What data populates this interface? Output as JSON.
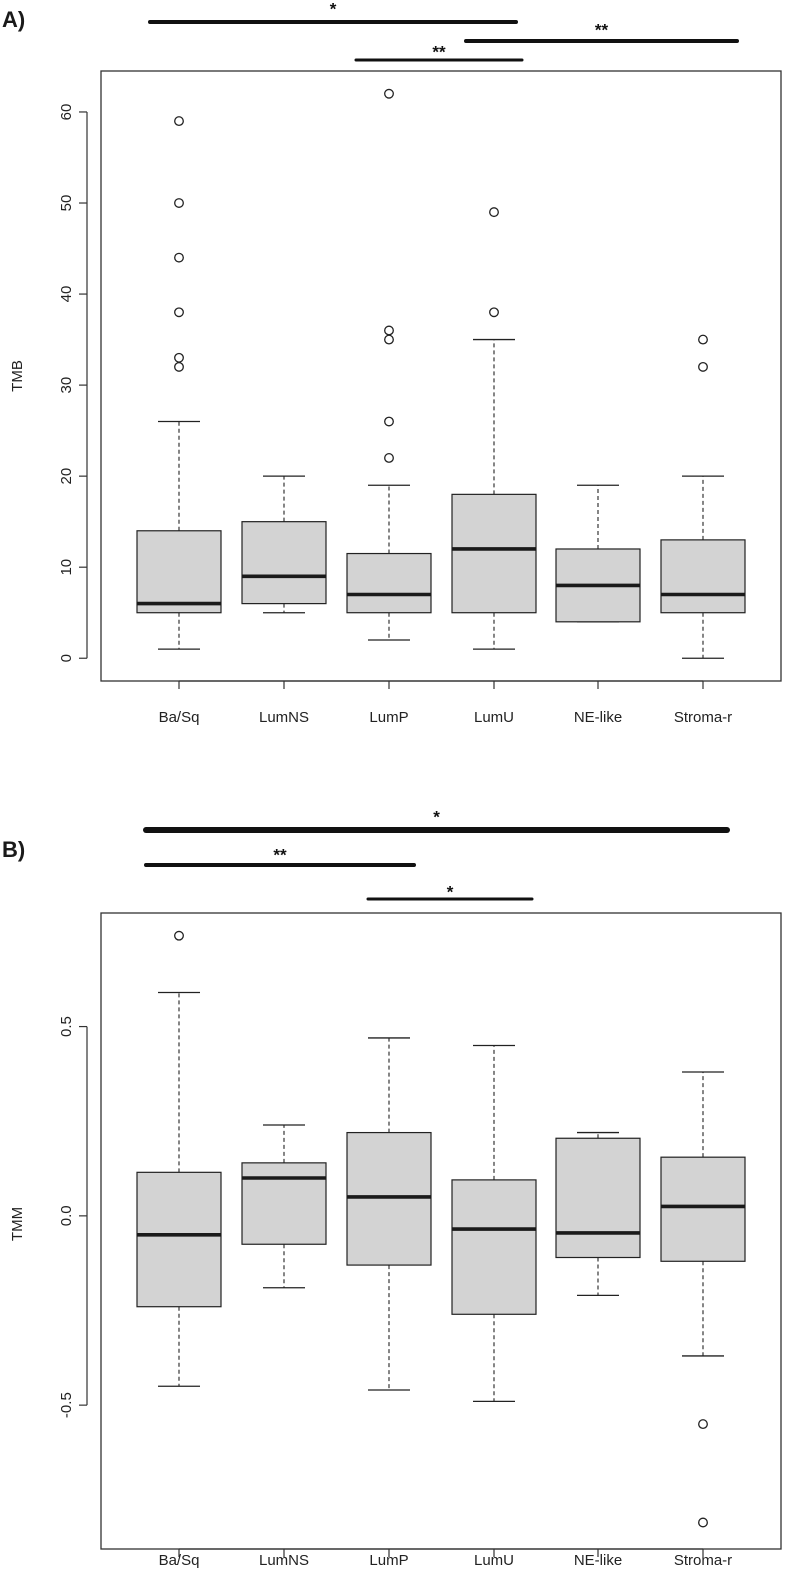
{
  "chart_data": [
    {
      "type": "box",
      "panel_label": "A)",
      "ylabel": "TMB",
      "ylim": [
        -2.5,
        64.5
      ],
      "yticks": [
        0,
        10,
        20,
        30,
        40,
        50,
        60
      ],
      "categories": [
        "Ba/Sq",
        "LumNS",
        "LumP",
        "LumU",
        "NE-like",
        "Stroma-r"
      ],
      "boxes": [
        {
          "whisker_low": 1,
          "q1": 5,
          "median": 6,
          "q3": 14,
          "whisker_high": 26,
          "outliers": [
            32,
            33,
            38,
            44,
            50,
            59
          ]
        },
        {
          "whisker_low": 5,
          "q1": 6,
          "median": 9,
          "q3": 15,
          "whisker_high": 20,
          "outliers": []
        },
        {
          "whisker_low": 2,
          "q1": 5,
          "median": 7,
          "q3": 11.5,
          "whisker_high": 19,
          "outliers": [
            22,
            26,
            35,
            36,
            62
          ]
        },
        {
          "whisker_low": 1,
          "q1": 5,
          "median": 12,
          "q3": 18,
          "whisker_high": 35,
          "outliers": [
            38,
            49
          ]
        },
        {
          "whisker_low": 4,
          "q1": 4,
          "median": 8,
          "q3": 12,
          "whisker_high": 19,
          "outliers": []
        },
        {
          "whisker_low": 0,
          "q1": 5,
          "median": 7,
          "q3": 13,
          "whisker_high": 20,
          "outliers": [
            32,
            35
          ]
        }
      ],
      "significance": [
        {
          "from": "Ba/Sq",
          "to": "LumU",
          "label": "*"
        },
        {
          "from": "LumP",
          "to": "LumU",
          "label": "**"
        },
        {
          "from": "LumU",
          "to": "Stroma-r",
          "label": "**"
        }
      ]
    },
    {
      "type": "box",
      "panel_label": "B)",
      "ylabel": "TMM",
      "ylim": [
        -0.88,
        0.8
      ],
      "yticks": [
        -0.5,
        0.0,
        0.5
      ],
      "ytick_labels": [
        "-0.5",
        "0.0",
        "0.5"
      ],
      "categories": [
        "Ba/Sq",
        "LumNS",
        "LumP",
        "LumU",
        "NE-like",
        "Stroma-r"
      ],
      "boxes": [
        {
          "whisker_low": -0.45,
          "q1": -0.24,
          "median": -0.05,
          "q3": 0.115,
          "whisker_high": 0.59,
          "outliers": [
            0.74
          ]
        },
        {
          "whisker_low": -0.19,
          "q1": -0.075,
          "median": 0.1,
          "q3": 0.14,
          "whisker_high": 0.24,
          "outliers": []
        },
        {
          "whisker_low": -0.46,
          "q1": -0.13,
          "median": 0.05,
          "q3": 0.22,
          "whisker_high": 0.47,
          "outliers": []
        },
        {
          "whisker_low": -0.49,
          "q1": -0.26,
          "median": -0.035,
          "q3": 0.095,
          "whisker_high": 0.45,
          "outliers": []
        },
        {
          "whisker_low": -0.21,
          "q1": -0.11,
          "median": -0.045,
          "q3": 0.205,
          "whisker_high": 0.22,
          "outliers": []
        },
        {
          "whisker_low": -0.37,
          "q1": -0.12,
          "median": 0.025,
          "q3": 0.155,
          "whisker_high": 0.38,
          "outliers": [
            -0.55,
            -0.81
          ]
        }
      ],
      "significance": [
        {
          "from": "Ba/Sq",
          "to": "Stroma-r",
          "label": "*"
        },
        {
          "from": "Ba/Sq",
          "to": "LumP",
          "label": "**"
        },
        {
          "from": "LumP",
          "to": "LumU",
          "label": "*"
        }
      ]
    }
  ]
}
